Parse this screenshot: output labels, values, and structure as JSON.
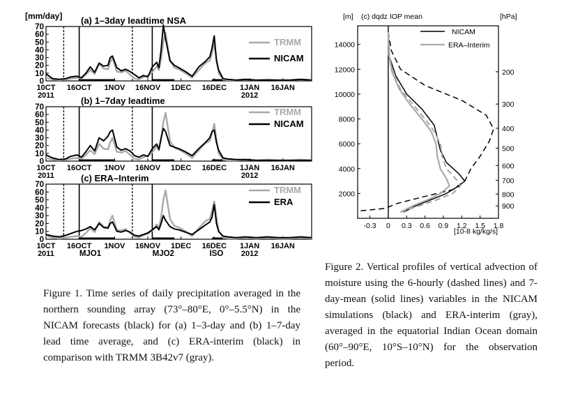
{
  "colors": {
    "obs": "#a9a9a9",
    "model": "#000000",
    "frame": "#000000"
  },
  "figure1": {
    "y_unit": "[mm/day]",
    "caption": "Figure 1. Time series of daily precipitation averaged in the northern sounding array (73°–80°E, 0°–5.5°N) in the NICAM forecasts (black) for (a) 1–3-day and (b) 1–7-day lead time average, and (c) ERA-interim (black) in comparison with TRMM 3B42v7 (gray).",
    "x_ticks": [
      {
        "day": 0,
        "label": "10CT"
      },
      {
        "day": 15,
        "label": "16OCT"
      },
      {
        "day": 31,
        "label": "1NOV"
      },
      {
        "day": 46,
        "label": "16NOV"
      },
      {
        "day": 61,
        "label": "1DEC"
      },
      {
        "day": 76,
        "label": "16DEC"
      },
      {
        "day": 92,
        "label": "1JAN"
      },
      {
        "day": 107,
        "label": "16JAN"
      }
    ],
    "x_year_labels": [
      {
        "day": 0,
        "label": "2011"
      },
      {
        "day": 92,
        "label": "2012"
      }
    ],
    "y_ticks": [
      0,
      10,
      20,
      30,
      40,
      50,
      60,
      70
    ],
    "event_labels": [
      {
        "day": 20,
        "label": "MJO1"
      },
      {
        "day": 53,
        "label": "MJO2"
      },
      {
        "day": 77,
        "label": "ISO"
      }
    ]
  },
  "figure2": {
    "title": "(c) dqdz IOP mean",
    "y_left_unit": "[m]",
    "y_right_unit": "[hPa]",
    "x_unit": "[10-8 kg/kg/s]",
    "caption": "Figure 2. Vertical profiles of vertical advection of moisture using the 6-hourly (dashed lines) and 7-day-mean (solid lines) variables in the NICAM simulations (black) and ERA-interim (gray), averaged in the equatorial Indian Ocean domain (60°–90°E, 10°S–10°N) for the observation period.",
    "legend": [
      "NICAM",
      "ERA–Interim"
    ]
  },
  "chart_data": [
    {
      "type": "line",
      "title": "(a) 1–3day leadtime NSA",
      "ylabel": "[mm/day]",
      "ylim": [
        0,
        70
      ],
      "xlim": [
        0,
        120
      ],
      "x_start": "2011-10-01",
      "shaded_day_ranges": [
        [
          15,
          31
        ],
        [
          48,
          58
        ],
        [
          75,
          80
        ]
      ],
      "dashed_marker_days": [
        8,
        39
      ],
      "solid_marker_days": [
        15,
        48
      ],
      "series": [
        {
          "name": "TRMM",
          "x": [
            0,
            3,
            6,
            9,
            11,
            14,
            16,
            18,
            20,
            22,
            24,
            26,
            28,
            29,
            30,
            32,
            34,
            36,
            38,
            40,
            42,
            44,
            46,
            48,
            50,
            51,
            52,
            53,
            54,
            56,
            58,
            60,
            63,
            66,
            69,
            72,
            74,
            75,
            76,
            77,
            78,
            80,
            82,
            86,
            90,
            95,
            100,
            105,
            110,
            115,
            120
          ],
          "values": [
            4,
            2,
            1,
            2,
            3,
            4,
            3,
            8,
            14,
            9,
            22,
            16,
            15,
            24,
            30,
            12,
            11,
            13,
            8,
            3,
            2,
            5,
            7,
            11,
            19,
            14,
            28,
            50,
            62,
            26,
            17,
            15,
            10,
            4,
            14,
            23,
            26,
            36,
            48,
            28,
            10,
            2,
            1,
            1,
            2,
            1,
            2,
            1,
            1,
            2,
            1
          ]
        },
        {
          "name": "NICAM",
          "x": [
            0,
            3,
            6,
            9,
            11,
            14,
            16,
            18,
            20,
            22,
            24,
            26,
            28,
            29,
            30,
            32,
            34,
            36,
            38,
            40,
            42,
            44,
            46,
            48,
            50,
            51,
            52,
            53,
            54,
            56,
            58,
            60,
            63,
            66,
            69,
            72,
            74,
            75,
            76,
            77,
            78,
            80,
            82,
            86,
            90,
            95,
            100,
            105,
            110,
            115,
            120
          ],
          "values": [
            9,
            3,
            2,
            3,
            5,
            6,
            4,
            10,
            18,
            11,
            23,
            19,
            20,
            30,
            32,
            17,
            13,
            15,
            12,
            8,
            4,
            7,
            5,
            18,
            24,
            17,
            40,
            72,
            54,
            26,
            20,
            17,
            12,
            6,
            18,
            25,
            31,
            42,
            58,
            26,
            14,
            3,
            2,
            1,
            2,
            1,
            1,
            1,
            1,
            2,
            1
          ]
        }
      ]
    },
    {
      "type": "line",
      "title": "(b) 1–7day leadtime",
      "ylabel": "[mm/day]",
      "ylim": [
        0,
        70
      ],
      "xlim": [
        0,
        120
      ],
      "x_start": "2011-10-01",
      "shaded_day_ranges": [
        [
          15,
          31
        ],
        [
          48,
          58
        ],
        [
          75,
          80
        ]
      ],
      "dashed_marker_days": [
        8,
        39
      ],
      "solid_marker_days": [
        15,
        48
      ],
      "series": [
        {
          "name": "TRMM",
          "x": [
            0,
            3,
            6,
            9,
            11,
            14,
            16,
            18,
            20,
            22,
            24,
            26,
            28,
            29,
            30,
            32,
            34,
            36,
            38,
            40,
            42,
            44,
            46,
            48,
            50,
            51,
            52,
            53,
            54,
            56,
            58,
            60,
            63,
            66,
            69,
            72,
            74,
            75,
            76,
            77,
            78,
            80,
            82,
            86,
            90,
            95,
            100,
            105,
            110,
            115,
            120
          ],
          "values": [
            4,
            2,
            1,
            2,
            3,
            4,
            3,
            8,
            14,
            9,
            22,
            16,
            15,
            24,
            30,
            12,
            11,
            13,
            8,
            3,
            2,
            5,
            7,
            11,
            19,
            14,
            28,
            50,
            62,
            26,
            17,
            15,
            10,
            4,
            14,
            23,
            26,
            36,
            48,
            28,
            10,
            2,
            1,
            1,
            2,
            1,
            2,
            1,
            1,
            2,
            1
          ]
        },
        {
          "name": "NICAM",
          "x": [
            0,
            3,
            6,
            9,
            11,
            14,
            16,
            18,
            20,
            22,
            24,
            26,
            28,
            29,
            30,
            32,
            34,
            36,
            38,
            40,
            42,
            44,
            46,
            48,
            50,
            51,
            52,
            53,
            54,
            56,
            58,
            60,
            63,
            66,
            69,
            72,
            74,
            75,
            76,
            77,
            78,
            80,
            82,
            86,
            90,
            95,
            100,
            105,
            110,
            115,
            120
          ],
          "values": [
            8,
            4,
            2,
            3,
            6,
            8,
            5,
            12,
            20,
            13,
            30,
            26,
            32,
            38,
            40,
            18,
            14,
            16,
            13,
            7,
            5,
            8,
            6,
            16,
            22,
            15,
            30,
            42,
            38,
            20,
            18,
            16,
            12,
            7,
            16,
            24,
            30,
            38,
            40,
            24,
            14,
            4,
            3,
            2,
            2,
            1,
            1,
            1,
            1,
            1,
            1
          ]
        }
      ]
    },
    {
      "type": "line",
      "title": "(c) ERA–Interim",
      "ylabel": "[mm/day]",
      "ylim": [
        0,
        70
      ],
      "xlim": [
        0,
        120
      ],
      "x_start": "2011-10-01",
      "shaded_day_ranges": [
        [
          15,
          31
        ],
        [
          48,
          58
        ],
        [
          75,
          80
        ]
      ],
      "dashed_marker_days": [
        8,
        39
      ],
      "solid_marker_days": [
        15,
        48
      ],
      "series": [
        {
          "name": "TRMM",
          "x": [
            0,
            3,
            6,
            9,
            11,
            14,
            16,
            18,
            20,
            22,
            24,
            26,
            28,
            29,
            30,
            32,
            34,
            36,
            38,
            40,
            42,
            44,
            46,
            48,
            50,
            51,
            52,
            53,
            54,
            56,
            58,
            60,
            63,
            66,
            69,
            72,
            74,
            75,
            76,
            77,
            78,
            80,
            82,
            86,
            90,
            95,
            100,
            105,
            110,
            115,
            120
          ],
          "values": [
            4,
            2,
            1,
            2,
            3,
            4,
            3,
            8,
            14,
            9,
            22,
            16,
            15,
            24,
            30,
            12,
            11,
            13,
            8,
            3,
            2,
            5,
            7,
            11,
            19,
            14,
            28,
            50,
            62,
            26,
            17,
            15,
            10,
            4,
            14,
            23,
            26,
            36,
            48,
            28,
            10,
            2,
            1,
            1,
            2,
            1,
            2,
            1,
            1,
            2,
            1
          ]
        },
        {
          "name": "ERA",
          "x": [
            0,
            3,
            6,
            9,
            11,
            14,
            16,
            18,
            20,
            22,
            24,
            26,
            28,
            29,
            30,
            32,
            34,
            36,
            38,
            40,
            42,
            44,
            46,
            48,
            50,
            51,
            52,
            53,
            54,
            56,
            58,
            60,
            63,
            66,
            69,
            72,
            74,
            75,
            76,
            77,
            78,
            80,
            82,
            86,
            90,
            95,
            100,
            105,
            110,
            115,
            120
          ],
          "values": [
            6,
            4,
            3,
            5,
            7,
            10,
            11,
            13,
            16,
            12,
            20,
            15,
            14,
            20,
            22,
            10,
            9,
            11,
            9,
            5,
            4,
            6,
            8,
            12,
            16,
            12,
            20,
            30,
            24,
            16,
            13,
            12,
            9,
            6,
            12,
            18,
            22,
            28,
            44,
            20,
            10,
            4,
            3,
            2,
            3,
            2,
            3,
            2,
            2,
            3,
            2
          ]
        }
      ]
    },
    {
      "type": "line",
      "title": "(c) dqdz IOP mean",
      "xlabel": "[10-8 kg/kg/s]",
      "ylabel": "[m]",
      "y2label": "[hPa]",
      "xlim": [
        -0.5,
        1.8
      ],
      "ylim": [
        0,
        15500
      ],
      "x_ticks": [
        -0.3,
        0,
        0.3,
        0.6,
        0.9,
        1.2,
        1.5,
        1.8
      ],
      "y_ticks": [
        2000,
        4000,
        6000,
        8000,
        10000,
        12000,
        14000
      ],
      "pressure_ticks": [
        {
          "hPa": 200,
          "height": 11800
        },
        {
          "hPa": 300,
          "height": 9200
        },
        {
          "hPa": 400,
          "height": 7250
        },
        {
          "hPa": 500,
          "height": 5650
        },
        {
          "hPa": 600,
          "height": 4250
        },
        {
          "hPa": 700,
          "height": 3050
        },
        {
          "hPa": 800,
          "height": 1950
        },
        {
          "hPa": 900,
          "height": 1000
        }
      ],
      "series": [
        {
          "name": "NICAM",
          "style": "solid",
          "x": [
            0.25,
            0.45,
            0.7,
            0.95,
            1.15,
            1.25,
            1.15,
            0.95,
            0.85,
            0.8,
            0.75,
            0.55,
            0.3,
            0.12,
            0.02,
            0
          ],
          "y": [
            500,
            1000,
            1500,
            2000,
            2600,
            3000,
            3600,
            4500,
            5500,
            6500,
            7500,
            8800,
            10000,
            11500,
            13000,
            15000
          ]
        },
        {
          "name": "NICAM",
          "style": "dashed",
          "x": [
            -0.45,
            -0.05,
            0.15,
            0.55,
            1.05,
            1.25,
            1.35,
            1.5,
            1.65,
            1.72,
            1.6,
            1.2,
            0.6,
            0.2,
            0.05,
            0
          ],
          "y": [
            600,
            800,
            1200,
            1700,
            2300,
            3000,
            4000,
            5000,
            6200,
            7200,
            8300,
            9500,
            10700,
            12000,
            13500,
            15000
          ]
        },
        {
          "name": "ERA–Interim",
          "style": "solid",
          "x": [
            0.2,
            0.4,
            0.65,
            0.85,
            1.0,
            0.95,
            0.85,
            0.8,
            0.78,
            0.7,
            0.55,
            0.35,
            0.18,
            0.06,
            0.01,
            0
          ],
          "y": [
            500,
            1000,
            1500,
            2000,
            2600,
            3200,
            4000,
            5000,
            6000,
            7000,
            8000,
            9200,
            10400,
            11800,
            13200,
            15000
          ]
        },
        {
          "name": "ERA–Interim",
          "style": "dashed",
          "x": [
            0.2,
            0.5,
            0.8,
            1.05,
            1.18,
            1.1,
            0.95,
            0.88,
            0.85,
            0.75,
            0.6,
            0.4,
            0.2,
            0.07,
            0.01,
            0
          ],
          "y": [
            500,
            1000,
            1500,
            2000,
            2600,
            3200,
            4000,
            5000,
            6000,
            7000,
            8000,
            9200,
            10400,
            11800,
            13200,
            15000
          ]
        }
      ]
    }
  ]
}
